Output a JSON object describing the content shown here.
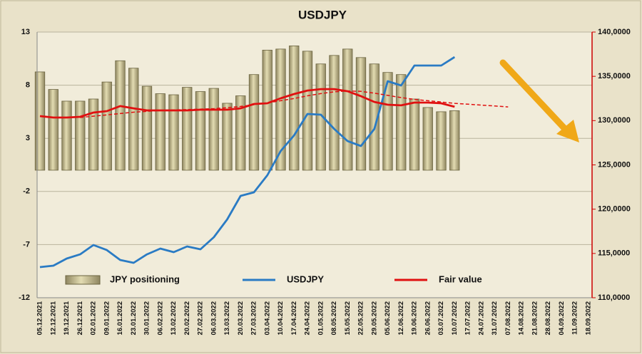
{
  "chart_data": {
    "type": "bar",
    "title": "USDJPY",
    "categories": [
      "05.12.2021",
      "12.12.2021",
      "19.12.2021",
      "26.12.2021",
      "02.01.2022",
      "09.01.2022",
      "16.01.2022",
      "23.01.2022",
      "30.01.2022",
      "06.02.2022",
      "13.02.2022",
      "20.02.2022",
      "27.02.2022",
      "06.03.2022",
      "13.03.2022",
      "20.03.2022",
      "27.03.2022",
      "03.04.2022",
      "10.04.2022",
      "17.04.2022",
      "24.04.2022",
      "01.05.2022",
      "08.05.2022",
      "15.05.2022",
      "22.05.2022",
      "29.05.2022",
      "05.06.2022",
      "12.06.2022",
      "19.06.2022",
      "26.06.2022",
      "03.07.2022",
      "10.07.2022",
      "17.07.2022",
      "24.07.2022",
      "31.07.2022",
      "07.08.2022",
      "14.08.2022",
      "21.08.2022",
      "28.08.2022",
      "04.09.2022",
      "11.09.2022",
      "18.09.2022"
    ],
    "series": [
      {
        "name": "JPY positioning",
        "type": "bar",
        "color": "#c8bf8c",
        "values": [
          9.25,
          7.6,
          6.5,
          6.5,
          6.7,
          8.3,
          10.3,
          9.6,
          7.9,
          7.2,
          7.1,
          7.8,
          7.4,
          7.7,
          6.3,
          7.0,
          9.0,
          11.3,
          11.4,
          11.7,
          11.2,
          10.0,
          10.8,
          11.4,
          10.6,
          10.0,
          9.2,
          9.0,
          6.7,
          5.9,
          5.5,
          5.6,
          null,
          null,
          null,
          null,
          null,
          null,
          null,
          null,
          null,
          null
        ]
      },
      {
        "name": "USDJPY",
        "type": "line",
        "axis": "y2",
        "color": "#2a7bc4",
        "values": [
          113460,
          113620,
          114420,
          114900,
          115950,
          115380,
          114260,
          113940,
          114900,
          115550,
          115150,
          115790,
          115470,
          116840,
          118850,
          121500,
          121900,
          123830,
          126570,
          128340,
          130750,
          130670,
          129060,
          127690,
          127130,
          129060,
          134450,
          133970,
          136220,
          136220,
          136220,
          137180,
          null,
          null,
          null,
          null,
          null,
          null,
          null,
          null,
          null,
          null
        ]
      },
      {
        "name": "Fair value",
        "type": "line",
        "axis": "y2",
        "color": "#e01010",
        "values": [
          130510,
          130350,
          130350,
          130430,
          130910,
          131070,
          131640,
          131390,
          131150,
          131150,
          131150,
          131150,
          131230,
          131230,
          131230,
          131390,
          131880,
          131960,
          132520,
          133000,
          133400,
          133560,
          133560,
          133320,
          132760,
          132110,
          131800,
          131720,
          132040,
          132040,
          131960,
          131560,
          null,
          null,
          null,
          null,
          null,
          null,
          null,
          null,
          null,
          null
        ]
      },
      {
        "type": "line",
        "axis": "y2",
        "color": "#e01010",
        "dashed": true,
        "values": [
          null,
          null,
          null,
          130350,
          130500,
          130650,
          130800,
          130950,
          131050,
          131150,
          131200,
          131250,
          131300,
          131350,
          131450,
          131600,
          131800,
          132000,
          132250,
          132500,
          132800,
          133050,
          133250,
          133350,
          133300,
          133100,
          132850,
          132600,
          132400,
          132250,
          132100,
          131950,
          131850,
          131750,
          131650,
          131550,
          null,
          null,
          null,
          null,
          null,
          null
        ]
      }
    ],
    "ylim": [
      -12,
      13
    ],
    "yticks": [
      13,
      8,
      3,
      -2,
      -7,
      -12
    ],
    "y2lim": [
      110000,
      140000
    ],
    "y2ticks": [
      {
        "value": 140000,
        "label": "140,0000"
      },
      {
        "value": 135000,
        "label": "135,0000"
      },
      {
        "value": 130000,
        "label": "130,0000"
      },
      {
        "value": 125000,
        "label": "125,0000"
      },
      {
        "value": 120000,
        "label": "120,0000"
      },
      {
        "value": 115000,
        "label": "115,0000"
      },
      {
        "value": 110000,
        "label": "110,0000"
      }
    ],
    "grid": true,
    "legend": "bottom"
  }
}
